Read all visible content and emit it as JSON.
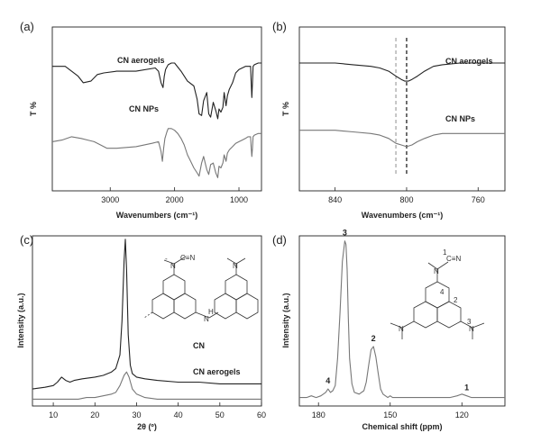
{
  "chart_data": [
    {
      "panel": "(a)",
      "type": "line",
      "xlabel": "Wavenumbers (cm⁻¹)",
      "ylabel": "T %",
      "xlim": [
        3900,
        650
      ],
      "x_reversed": true,
      "xticks": [
        3000,
        2000,
        1000
      ],
      "ylim": [
        0,
        1
      ],
      "series": [
        {
          "name": "CN aerogels",
          "color": "#222222",
          "x": [
            3900,
            3700,
            3500,
            3420,
            3300,
            3200,
            3100,
            2900,
            2600,
            2300,
            2250,
            2210,
            2180,
            2160,
            2140,
            2100,
            2050,
            2000,
            1900,
            1800,
            1700,
            1650,
            1620,
            1580,
            1550,
            1500,
            1470,
            1440,
            1400,
            1360,
            1330,
            1310,
            1280,
            1250,
            1230,
            1200,
            1180,
            1150,
            1100,
            1050,
            1000,
            950,
            900,
            860,
            820,
            810,
            800,
            790,
            780,
            760,
            700,
            650
          ],
          "y": [
            0.76,
            0.76,
            0.7,
            0.66,
            0.67,
            0.71,
            0.72,
            0.73,
            0.73,
            0.75,
            0.73,
            0.66,
            0.63,
            0.7,
            0.74,
            0.77,
            0.78,
            0.78,
            0.73,
            0.67,
            0.64,
            0.56,
            0.47,
            0.46,
            0.55,
            0.6,
            0.47,
            0.45,
            0.54,
            0.49,
            0.44,
            0.5,
            0.48,
            0.51,
            0.6,
            0.52,
            0.58,
            0.62,
            0.66,
            0.72,
            0.74,
            0.75,
            0.76,
            0.76,
            0.76,
            0.66,
            0.57,
            0.66,
            0.76,
            0.77,
            0.78,
            0.78
          ]
        },
        {
          "name": "CN NPs",
          "color": "#777777",
          "x": [
            3900,
            3750,
            3600,
            3450,
            3350,
            3250,
            3150,
            3050,
            2900,
            2600,
            2350,
            2250,
            2210,
            2190,
            2170,
            2150,
            2120,
            2100,
            2050,
            2000,
            1950,
            1900,
            1850,
            1800,
            1750,
            1700,
            1650,
            1620,
            1580,
            1550,
            1500,
            1470,
            1440,
            1400,
            1360,
            1330,
            1310,
            1280,
            1250,
            1230,
            1200,
            1180,
            1150,
            1100,
            1050,
            1000,
            950,
            900,
            860,
            820,
            810,
            800,
            790,
            780,
            760,
            700,
            650
          ],
          "y": [
            0.3,
            0.31,
            0.33,
            0.32,
            0.31,
            0.3,
            0.28,
            0.26,
            0.26,
            0.27,
            0.29,
            0.3,
            0.24,
            0.18,
            0.26,
            0.32,
            0.36,
            0.38,
            0.38,
            0.37,
            0.35,
            0.32,
            0.28,
            0.22,
            0.18,
            0.14,
            0.11,
            0.09,
            0.17,
            0.21,
            0.13,
            0.1,
            0.16,
            0.17,
            0.11,
            0.08,
            0.15,
            0.14,
            0.17,
            0.22,
            0.18,
            0.23,
            0.25,
            0.27,
            0.29,
            0.3,
            0.31,
            0.32,
            0.33,
            0.33,
            0.26,
            0.21,
            0.26,
            0.33,
            0.34,
            0.35,
            0.35
          ]
        }
      ]
    },
    {
      "panel": "(b)",
      "type": "line",
      "xlabel": "Wavenumbers (cm⁻¹)",
      "ylabel": "T %",
      "xlim": [
        860,
        745
      ],
      "x_reversed": true,
      "xticks": [
        840,
        800,
        760
      ],
      "ylim": [
        0,
        1
      ],
      "reference_lines_x": [
        {
          "x": 800,
          "style": "dashed",
          "color": "#222222"
        },
        {
          "x": 806,
          "style": "dashed",
          "color": "#999999"
        }
      ],
      "series": [
        {
          "name": "CN aerogels",
          "color": "#222222",
          "x": [
            860,
            850,
            840,
            830,
            820,
            815,
            810,
            806,
            803,
            801,
            799,
            797,
            794,
            790,
            785,
            780,
            770,
            760,
            750,
            745
          ],
          "y": [
            0.78,
            0.78,
            0.78,
            0.77,
            0.76,
            0.75,
            0.73,
            0.7,
            0.68,
            0.67,
            0.67,
            0.68,
            0.7,
            0.73,
            0.76,
            0.77,
            0.78,
            0.78,
            0.78,
            0.78
          ]
        },
        {
          "name": "CN NPs",
          "color": "#777777",
          "x": [
            860,
            850,
            840,
            830,
            820,
            815,
            810,
            806,
            803,
            800,
            797,
            794,
            790,
            785,
            780,
            770,
            760,
            750,
            745
          ],
          "y": [
            0.37,
            0.37,
            0.37,
            0.36,
            0.35,
            0.34,
            0.32,
            0.29,
            0.28,
            0.27,
            0.28,
            0.3,
            0.32,
            0.34,
            0.35,
            0.35,
            0.35,
            0.35,
            0.35
          ]
        }
      ]
    },
    {
      "panel": "(c)",
      "type": "line",
      "xlabel": "2θ (º)",
      "ylabel": "Intensity (a.u.)",
      "xlim": [
        5,
        60
      ],
      "xticks": [
        10,
        20,
        30,
        40,
        50,
        60
      ],
      "ylim": [
        0,
        1
      ],
      "series": [
        {
          "name": "CN",
          "color": "#222222",
          "x": [
            5,
            8,
            10,
            11,
            12,
            13,
            14,
            15,
            17,
            20,
            22,
            24,
            25,
            26,
            26.5,
            27,
            27.3,
            27.6,
            28,
            28.5,
            29,
            30,
            32,
            35,
            40,
            45,
            50,
            55,
            60
          ],
          "y": [
            0.1,
            0.11,
            0.12,
            0.14,
            0.17,
            0.15,
            0.14,
            0.15,
            0.16,
            0.17,
            0.18,
            0.2,
            0.22,
            0.3,
            0.5,
            0.85,
            0.98,
            0.8,
            0.42,
            0.24,
            0.19,
            0.17,
            0.16,
            0.15,
            0.14,
            0.14,
            0.13,
            0.13,
            0.13
          ]
        },
        {
          "name": "CN aerogels",
          "color": "#777777",
          "x": [
            5,
            8,
            10,
            12,
            14,
            16,
            18,
            20,
            22,
            24,
            25,
            26,
            27,
            27.6,
            28.2,
            29,
            30,
            32,
            35,
            40,
            45,
            50,
            55,
            60
          ],
          "y": [
            0.04,
            0.04,
            0.04,
            0.04,
            0.04,
            0.04,
            0.05,
            0.05,
            0.06,
            0.07,
            0.08,
            0.12,
            0.18,
            0.2,
            0.17,
            0.1,
            0.07,
            0.05,
            0.04,
            0.04,
            0.04,
            0.04,
            0.04,
            0.04
          ]
        }
      ]
    },
    {
      "panel": "(d)",
      "type": "line",
      "xlabel": "Chemical shift (ppm)",
      "ylabel": "Intensity (a.u.)",
      "xlim": [
        188,
        102
      ],
      "x_reversed": true,
      "xticks": [
        180,
        150,
        120
      ],
      "ylim": [
        0,
        1
      ],
      "series": [
        {
          "name": "",
          "color": "#777777",
          "x": [
            188,
            185,
            183,
            181,
            179,
            177,
            176,
            175,
            174,
            173,
            172,
            171,
            170,
            169,
            168.5,
            168,
            167.5,
            167,
            166,
            165,
            163,
            161,
            160,
            159,
            158,
            157,
            156,
            155,
            154,
            153,
            152,
            151,
            150,
            149,
            148,
            146,
            144,
            142,
            140,
            135,
            130,
            125,
            122,
            120,
            118,
            116,
            112,
            108,
            104,
            102
          ],
          "y": [
            0.05,
            0.05,
            0.06,
            0.05,
            0.06,
            0.08,
            0.1,
            0.08,
            0.09,
            0.12,
            0.28,
            0.55,
            0.85,
            0.97,
            0.95,
            0.8,
            0.52,
            0.28,
            0.13,
            0.08,
            0.07,
            0.09,
            0.14,
            0.24,
            0.33,
            0.35,
            0.29,
            0.19,
            0.1,
            0.07,
            0.06,
            0.05,
            0.06,
            0.05,
            0.05,
            0.05,
            0.05,
            0.05,
            0.05,
            0.05,
            0.05,
            0.05,
            0.06,
            0.07,
            0.06,
            0.05,
            0.05,
            0.05,
            0.05,
            0.05
          ]
        }
      ],
      "peak_labels": [
        {
          "text": "1",
          "x": 118
        },
        {
          "text": "2",
          "x": 157
        },
        {
          "text": "3",
          "x": 169
        },
        {
          "text": "4",
          "x": 176
        }
      ]
    }
  ]
}
